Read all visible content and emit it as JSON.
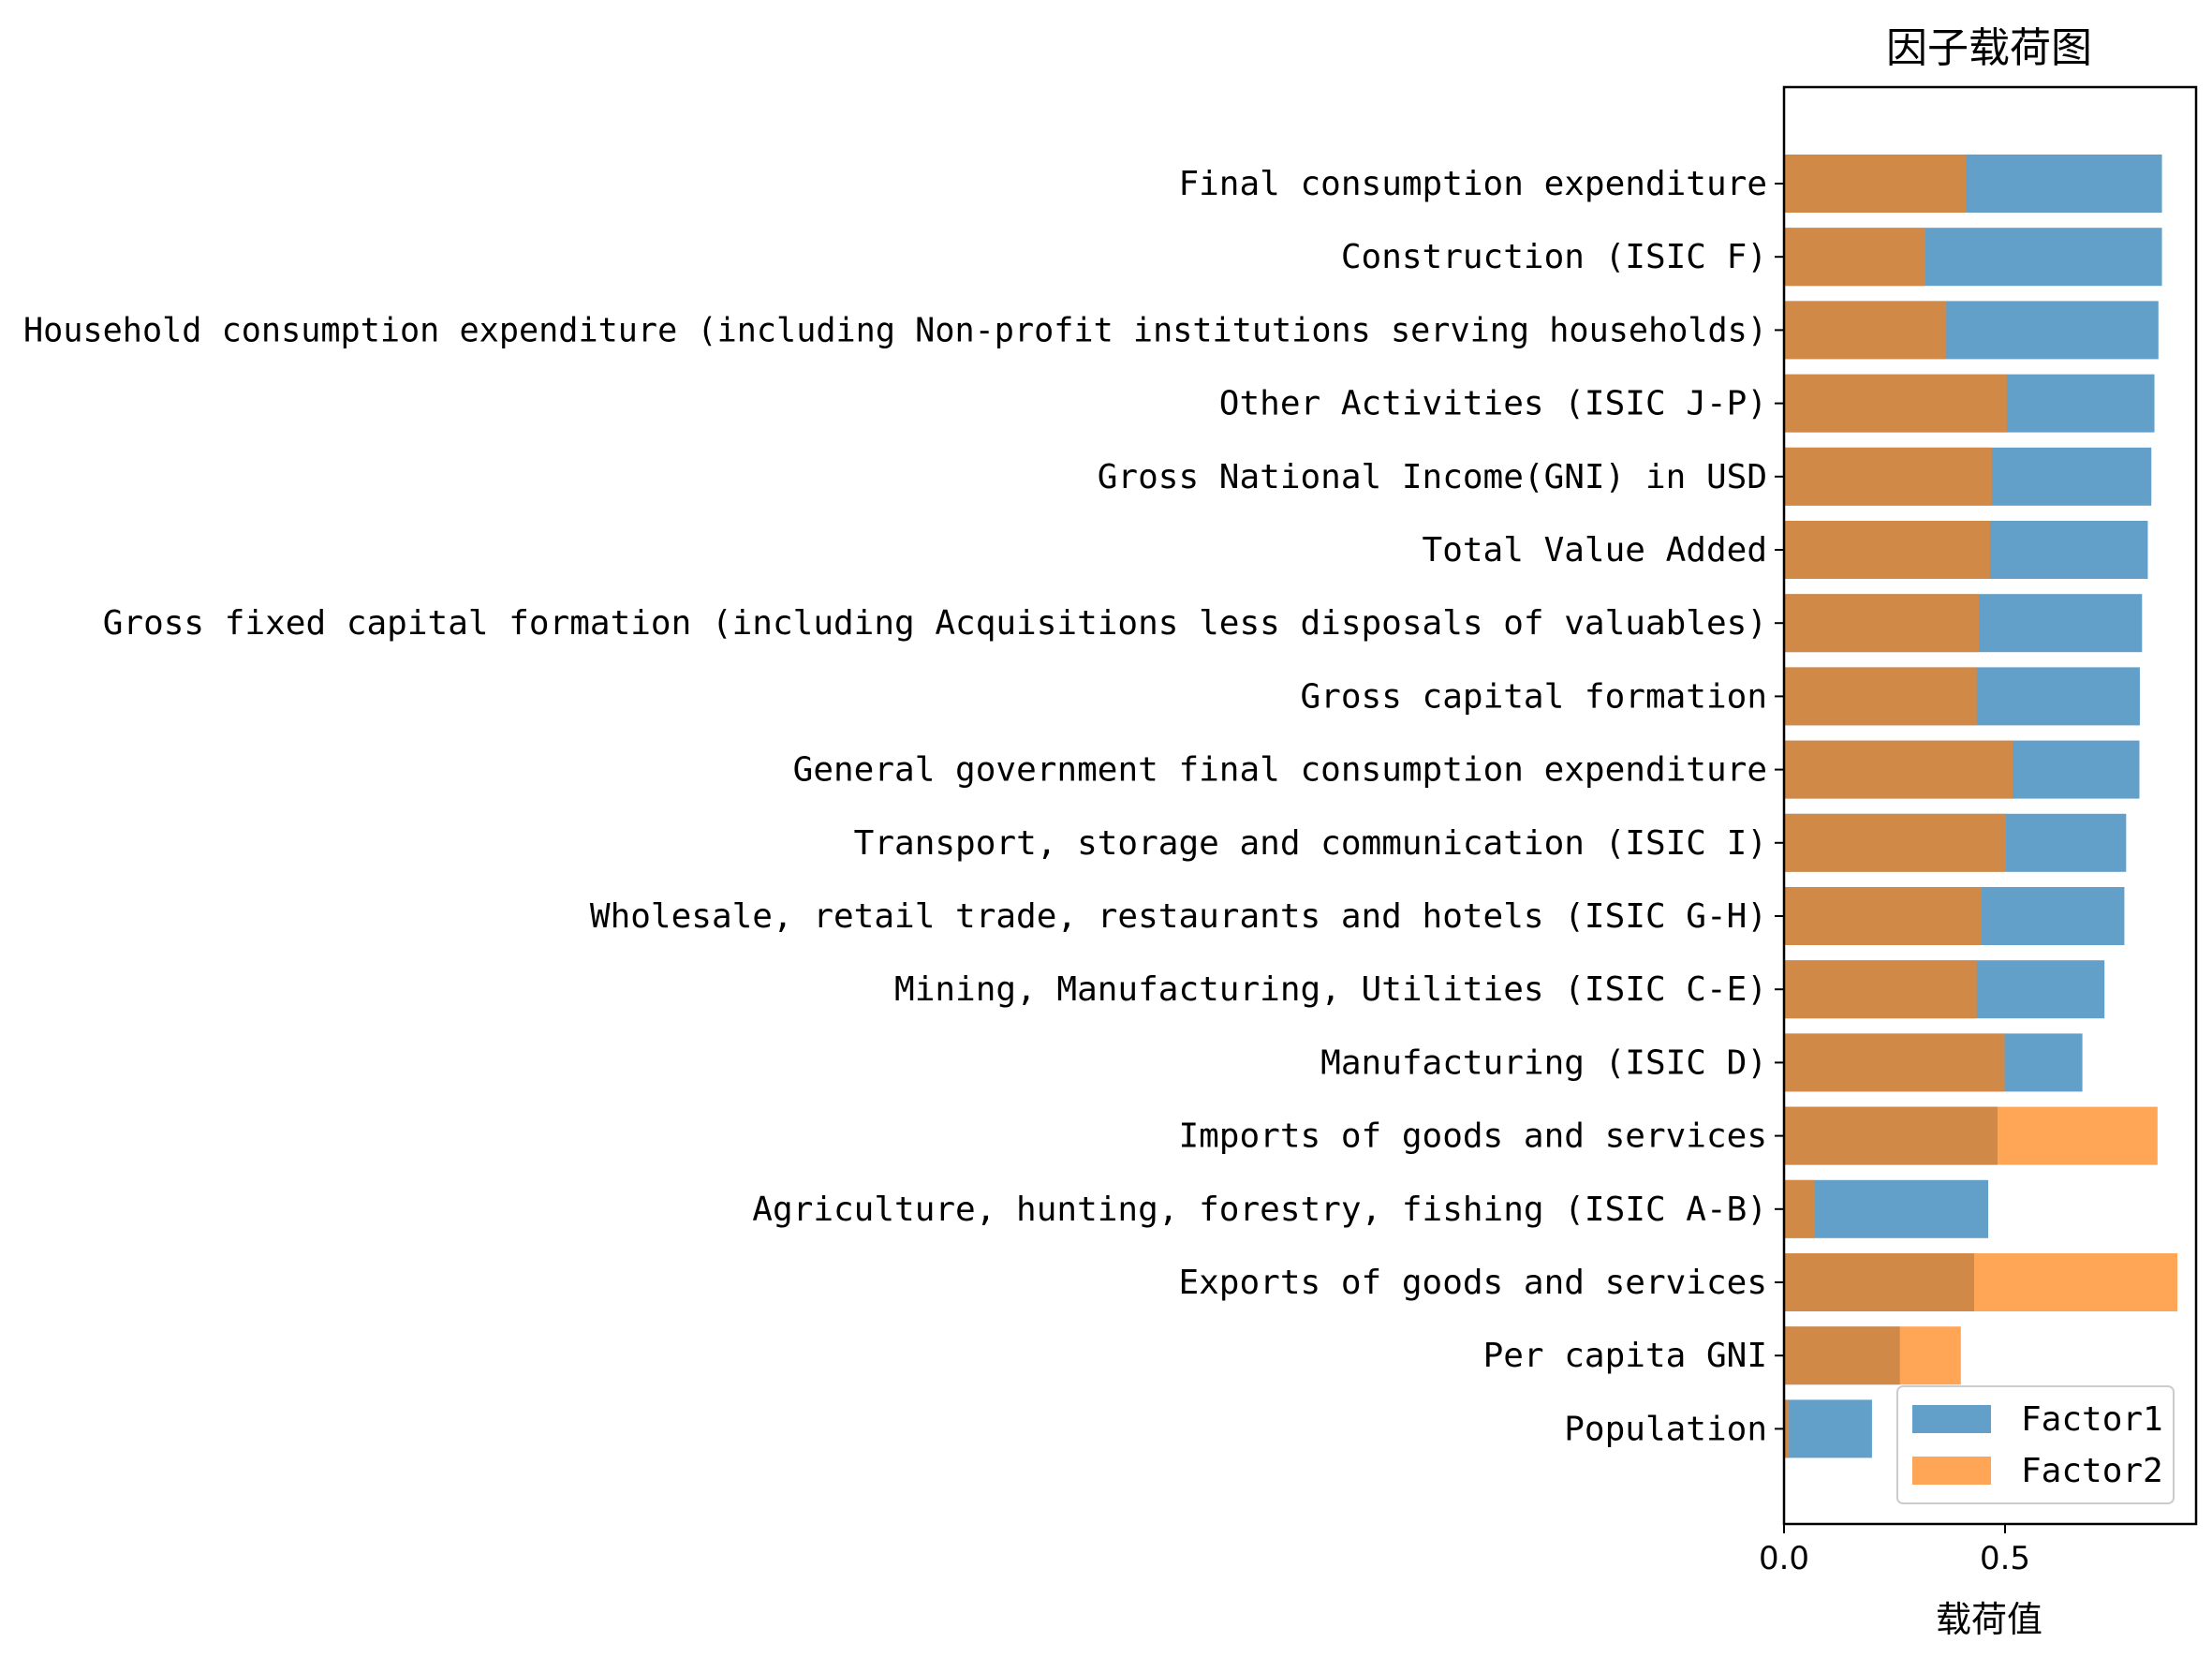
{
  "chart_data": {
    "type": "bar",
    "orientation": "horizontal",
    "stacking": "overlay",
    "title": "因子载荷图",
    "xlabel": "载荷值",
    "ylabel": "",
    "xlim": [
      0,
      0.94
    ],
    "xticks": [
      0.0,
      0.5
    ],
    "xtick_labels": [
      "0.0",
      "0.5"
    ],
    "legend_position": "lower right",
    "categories": [
      "Final consumption expenditure",
      "Construction (ISIC F)",
      "Household consumption expenditure (including Non-profit institutions serving households)",
      "Other Activities (ISIC J-P)",
      "Gross National Income(GNI) in USD",
      "Total Value Added",
      "Gross fixed capital formation (including Acquisitions less disposals of valuables)",
      "Gross capital formation",
      "General government final consumption expenditure",
      "Transport, storage and communication (ISIC I)",
      "Wholesale, retail trade, restaurants and hotels (ISIC G-H)",
      "Mining, Manufacturing, Utilities (ISIC C-E)",
      "Manufacturing (ISIC D)",
      "Imports of goods and services",
      "Agriculture, hunting, forestry, fishing (ISIC A-B)",
      "Exports of goods and services",
      "Per capita GNI",
      "Population"
    ],
    "series": [
      {
        "name": "Factor1",
        "color": "#1f77b4",
        "values": [
          0.855,
          0.855,
          0.847,
          0.838,
          0.831,
          0.823,
          0.81,
          0.805,
          0.804,
          0.774,
          0.77,
          0.725,
          0.675,
          0.483,
          0.462,
          0.43,
          0.262,
          0.199
        ]
      },
      {
        "name": "Factor2",
        "color": "#ff7f0e",
        "values": [
          0.412,
          0.32,
          0.367,
          0.504,
          0.47,
          0.466,
          0.441,
          0.436,
          0.517,
          0.502,
          0.447,
          0.436,
          0.499,
          0.845,
          0.07,
          0.89,
          0.4,
          0.011
        ]
      }
    ]
  }
}
